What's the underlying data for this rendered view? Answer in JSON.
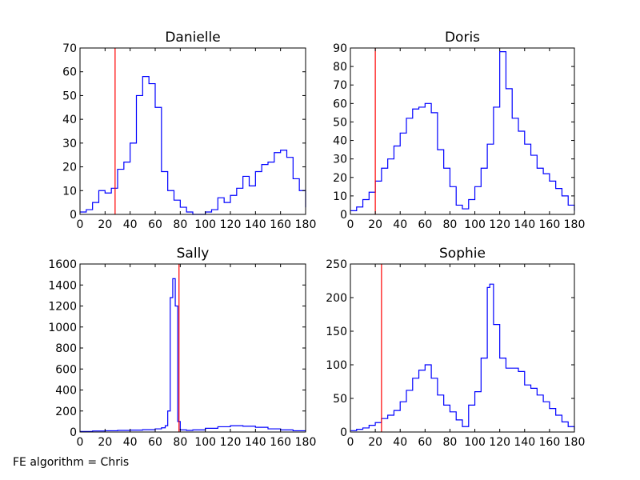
{
  "footer_text": "FE algorithm = Chris",
  "colors": {
    "series": "#0000ff",
    "marker": "#ff0000",
    "axes": "#000000"
  },
  "chart_data": [
    {
      "type": "line",
      "step": true,
      "title": "Danielle",
      "xlabel": "",
      "ylabel": "",
      "xlim": [
        0,
        180
      ],
      "ylim": [
        0,
        70
      ],
      "xticks": [
        0,
        20,
        40,
        60,
        80,
        100,
        120,
        140,
        160,
        180
      ],
      "yticks": [
        0,
        10,
        20,
        30,
        40,
        50,
        60,
        70
      ],
      "vline": 28,
      "series": [
        {
          "x": [
            0,
            5,
            10,
            15,
            20,
            25,
            30,
            35,
            40,
            45,
            50,
            55,
            60,
            65,
            70,
            75,
            80,
            85,
            90,
            95,
            100,
            105,
            110,
            115,
            120,
            125,
            130,
            135,
            140,
            145,
            150,
            155,
            160,
            165,
            170,
            175,
            180
          ],
          "values": [
            1,
            2,
            5,
            10,
            9,
            11,
            19,
            22,
            30,
            50,
            58,
            55,
            45,
            18,
            10,
            6,
            3,
            1,
            0,
            0,
            1,
            2,
            7,
            5,
            8,
            11,
            16,
            12,
            18,
            21,
            22,
            26,
            27,
            24,
            15,
            10,
            3
          ]
        }
      ]
    },
    {
      "type": "line",
      "step": true,
      "title": "Doris",
      "xlabel": "",
      "ylabel": "",
      "xlim": [
        0,
        180
      ],
      "ylim": [
        0,
        90
      ],
      "xticks": [
        0,
        20,
        40,
        60,
        80,
        100,
        120,
        140,
        160,
        180
      ],
      "yticks": [
        0,
        10,
        20,
        30,
        40,
        50,
        60,
        70,
        80,
        90
      ],
      "vline": 20,
      "series": [
        {
          "x": [
            0,
            5,
            10,
            15,
            20,
            25,
            30,
            35,
            40,
            45,
            50,
            55,
            60,
            65,
            70,
            75,
            80,
            85,
            90,
            95,
            100,
            105,
            110,
            115,
            120,
            125,
            130,
            135,
            140,
            145,
            150,
            155,
            160,
            165,
            170,
            175,
            180
          ],
          "values": [
            2,
            4,
            8,
            12,
            18,
            25,
            30,
            37,
            44,
            52,
            57,
            58,
            60,
            55,
            35,
            25,
            15,
            5,
            3,
            8,
            15,
            25,
            38,
            58,
            88,
            68,
            52,
            45,
            38,
            32,
            25,
            22,
            18,
            14,
            10,
            5,
            2
          ]
        }
      ]
    },
    {
      "type": "line",
      "step": true,
      "title": "Sally",
      "xlabel": "",
      "ylabel": "",
      "xlim": [
        0,
        180
      ],
      "ylim": [
        0,
        1600
      ],
      "xticks": [
        0,
        20,
        40,
        60,
        80,
        100,
        120,
        140,
        160,
        180
      ],
      "yticks": [
        0,
        200,
        400,
        600,
        800,
        1000,
        1200,
        1400,
        1600
      ],
      "vline": 79,
      "series": [
        {
          "x": [
            0,
            10,
            20,
            30,
            40,
            50,
            60,
            65,
            68,
            70,
            72,
            74,
            76,
            78,
            80,
            85,
            90,
            100,
            110,
            120,
            130,
            140,
            150,
            160,
            170,
            180
          ],
          "values": [
            5,
            10,
            12,
            15,
            18,
            22,
            30,
            40,
            60,
            200,
            1280,
            1460,
            1200,
            100,
            20,
            15,
            20,
            35,
            50,
            60,
            55,
            45,
            30,
            20,
            12,
            5
          ]
        }
      ]
    },
    {
      "type": "line",
      "step": true,
      "title": "Sophie",
      "xlabel": "",
      "ylabel": "",
      "xlim": [
        0,
        180
      ],
      "ylim": [
        0,
        250
      ],
      "xticks": [
        0,
        20,
        40,
        60,
        80,
        100,
        120,
        140,
        160,
        180
      ],
      "yticks": [
        0,
        50,
        100,
        150,
        200,
        250
      ],
      "vline": 25,
      "series": [
        {
          "x": [
            0,
            5,
            10,
            15,
            20,
            25,
            30,
            35,
            40,
            45,
            50,
            55,
            60,
            65,
            70,
            75,
            80,
            85,
            90,
            95,
            100,
            105,
            110,
            112,
            115,
            120,
            125,
            130,
            135,
            140,
            145,
            150,
            155,
            160,
            165,
            170,
            175,
            180
          ],
          "values": [
            2,
            4,
            6,
            10,
            14,
            20,
            25,
            32,
            45,
            62,
            80,
            92,
            100,
            80,
            55,
            40,
            30,
            18,
            8,
            40,
            60,
            110,
            215,
            220,
            160,
            110,
            95,
            95,
            90,
            70,
            65,
            55,
            45,
            35,
            25,
            15,
            8,
            3
          ]
        }
      ]
    }
  ]
}
